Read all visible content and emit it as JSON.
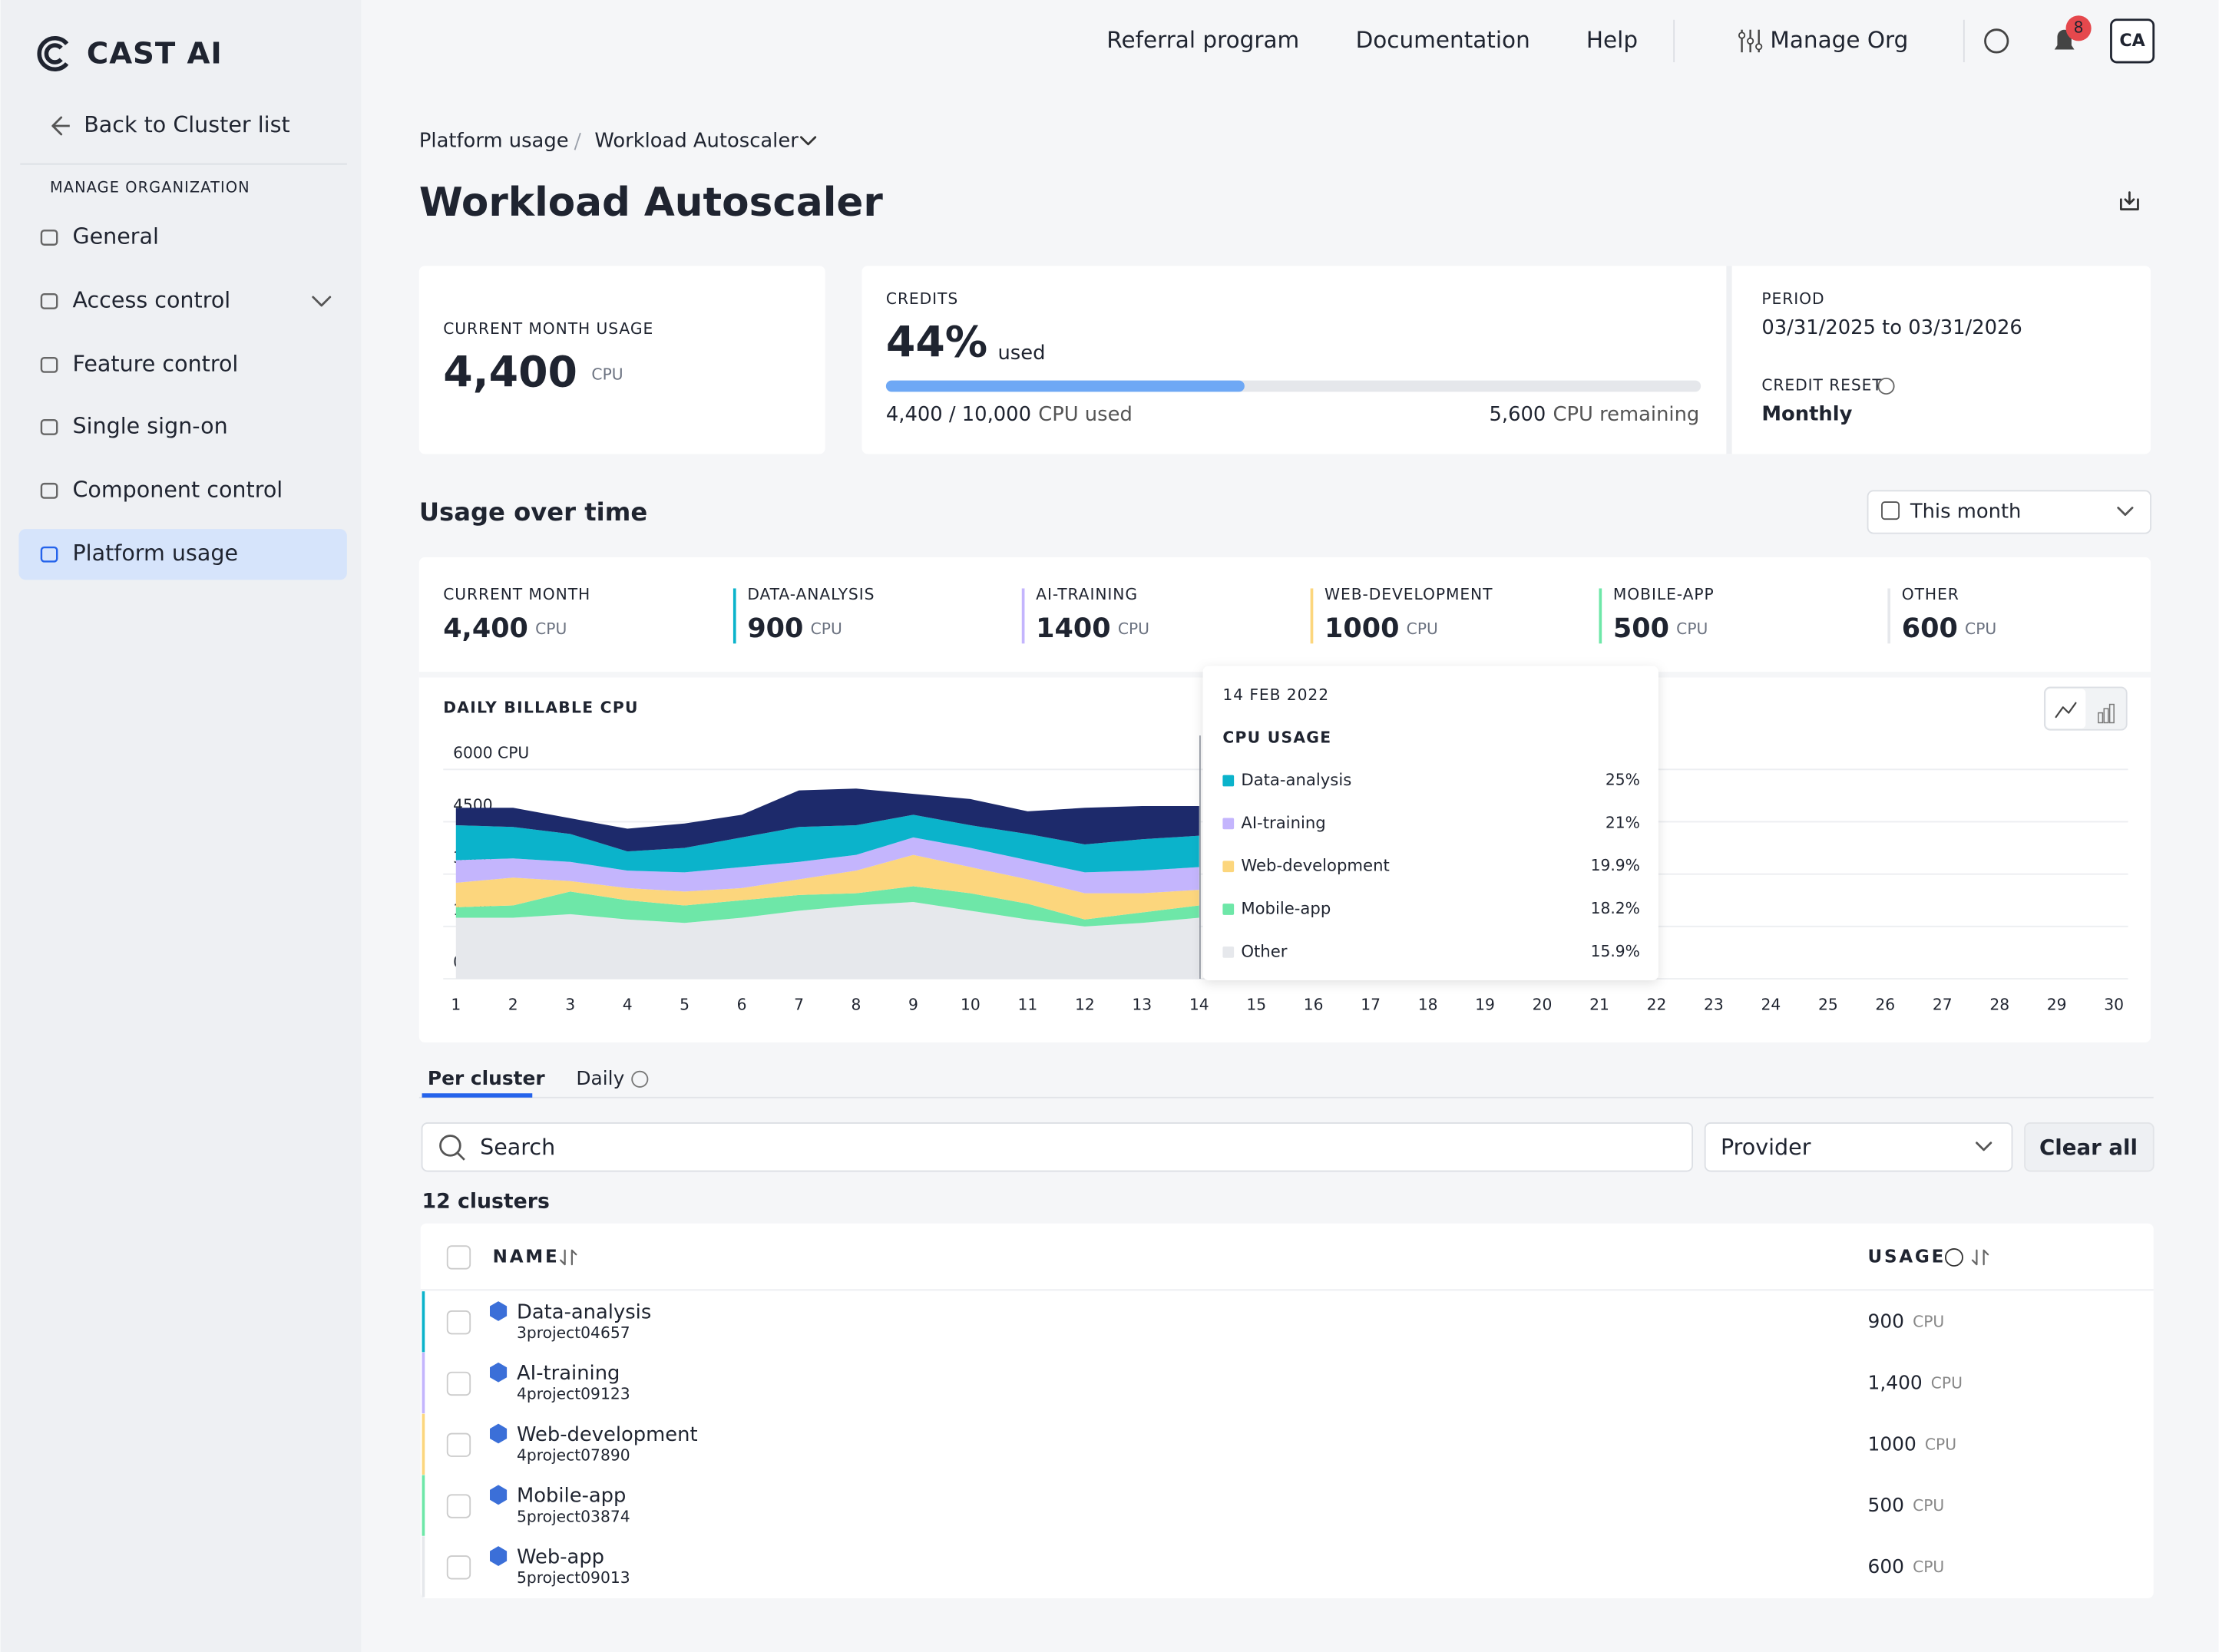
{
  "sidebar": {
    "logo": "CAST AI",
    "back": "Back to Cluster list",
    "section": "MANAGE ORGANIZATION",
    "items": [
      "General",
      "Access control",
      "Feature control",
      "Single sign-on",
      "Component control",
      "Platform usage"
    ]
  },
  "topnav": {
    "links": [
      "Referral program",
      "Documentation",
      "Help",
      "Manage Org"
    ],
    "notifications": "8",
    "avatar": "CA"
  },
  "breadcrumb": [
    "Platform usage",
    "Workload Autoscaler"
  ],
  "title": "Workload Autoscaler",
  "usage_card": {
    "label": "CURRENT MONTH USAGE",
    "value": "4,400",
    "unit": "CPU"
  },
  "credits_card": {
    "label": "CREDITS",
    "used_percent": 44,
    "used_percent_label": "44%",
    "used_word": "used",
    "used_text": "4,400 / 10,000",
    "used_unit": "CPU used",
    "remaining": "5,600",
    "remaining_unit": "CPU remaining"
  },
  "period_card": {
    "label": "PERIOD",
    "value": "03/31/2025 to 03/31/2026",
    "reset_label": "CREDIT RESET",
    "reset": "Monthly"
  },
  "section_title": "Usage over time",
  "range_select": "This month",
  "summary": [
    {
      "label": "CURRENT MONTH",
      "value": "4,400",
      "unit": "CPU"
    },
    {
      "label": "DATA-ANALYSIS",
      "value": "900",
      "unit": "CPU",
      "color": "#0bb3cb"
    },
    {
      "label": "AI-TRAINING",
      "value": "1400",
      "unit": "CPU",
      "color": "#c4b5fd"
    },
    {
      "label": "WEB-DEVELOPMENT",
      "value": "1000",
      "unit": "CPU",
      "color": "#fcd67d"
    },
    {
      "label": "MOBILE-APP",
      "value": "500",
      "unit": "CPU",
      "color": "#6ee7a8"
    },
    {
      "label": "OTHER",
      "value": "600",
      "unit": "CPU"
    }
  ],
  "chart_data": {
    "type": "area",
    "stacked": true,
    "title": "DAILY BILLABLE CPU",
    "x": [
      1,
      2,
      3,
      4,
      5,
      6,
      7,
      8,
      9,
      10,
      11,
      12,
      13,
      14,
      15,
      16,
      17,
      18,
      19,
      20,
      21,
      22,
      23,
      24,
      25,
      26,
      27,
      28,
      29,
      30
    ],
    "xlim": [
      1,
      30
    ],
    "xticks": [
      1,
      2,
      3,
      4,
      5,
      6,
      7,
      8,
      9,
      10,
      11,
      12,
      13,
      14,
      15,
      16,
      17,
      18,
      19,
      20,
      21,
      22,
      23,
      24,
      25,
      26,
      27,
      28,
      29,
      30
    ],
    "ylim": [
      0,
      6000
    ],
    "yticks": [
      0,
      1500,
      3000,
      4500,
      {
        "value": 6000,
        "label": "6000 CPU"
      }
    ],
    "grid": true,
    "series": [
      {
        "name": "Other",
        "color": "#e6e8ec",
        "values": [
          1750,
          1750,
          1850,
          1700,
          1600,
          1750,
          1950,
          2100,
          2200,
          1950,
          1700,
          1500,
          1600,
          1750,
          null,
          null,
          null,
          null,
          null,
          null,
          null,
          null,
          null,
          null,
          null,
          null,
          null,
          null,
          null,
          null
        ]
      },
      {
        "name": "Mobile-app",
        "color": "#6ee7a8",
        "values": [
          300,
          350,
          650,
          550,
          500,
          500,
          450,
          350,
          450,
          500,
          450,
          200,
          300,
          350,
          null,
          null,
          null,
          null,
          null,
          null,
          null,
          null,
          null,
          null,
          null,
          null,
          null,
          null,
          null,
          null
        ]
      },
      {
        "name": "Web-development",
        "color": "#fcd67d",
        "values": [
          700,
          800,
          300,
          350,
          400,
          350,
          450,
          650,
          900,
          750,
          700,
          750,
          550,
          450,
          null,
          null,
          null,
          null,
          null,
          null,
          null,
          null,
          null,
          null,
          null,
          null,
          null,
          null,
          null,
          null
        ]
      },
      {
        "name": "AI-training",
        "color": "#c4b5fd",
        "values": [
          650,
          550,
          550,
          500,
          550,
          600,
          500,
          450,
          500,
          550,
          550,
          600,
          650,
          650,
          null,
          null,
          null,
          null,
          null,
          null,
          null,
          null,
          null,
          null,
          null,
          null,
          null,
          null,
          null,
          null
        ]
      },
      {
        "name": "Data-analysis",
        "color": "#0bb3cb",
        "values": [
          1000,
          900,
          800,
          550,
          700,
          850,
          1000,
          850,
          650,
          650,
          750,
          800,
          900,
          900,
          null,
          null,
          null,
          null,
          null,
          null,
          null,
          null,
          null,
          null,
          null,
          null,
          null,
          null,
          null,
          null
        ]
      },
      {
        "color": "#1d2a6b",
        "values": [
          500,
          550,
          450,
          650,
          700,
          650,
          1050,
          1050,
          600,
          750,
          650,
          1050,
          950,
          850,
          null,
          null,
          null,
          null,
          null,
          null,
          null,
          null,
          null,
          null,
          null,
          null,
          null,
          null,
          null,
          null
        ]
      }
    ],
    "tooltip": {
      "date": "14 FEB 2022",
      "heading": "CPU USAGE",
      "items": [
        {
          "name": "Data-analysis",
          "color": "#0bb3cb",
          "value_label": "25%"
        },
        {
          "name": "AI-training",
          "color": "#c4b5fd",
          "value_label": "21%"
        },
        {
          "name": "Web-development",
          "color": "#fcd67d",
          "value_label": "19.9%"
        },
        {
          "name": "Mobile-app",
          "color": "#6ee7a8",
          "value_label": "18.2%"
        },
        {
          "name": "Other",
          "color": "#e6e8ec",
          "value_label": "15.9%"
        }
      ]
    }
  },
  "tabs": [
    "Per cluster",
    "Daily"
  ],
  "search_placeholder": "Search",
  "provider": "Provider",
  "clear_all": "Clear all",
  "cluster_count": "12 clusters",
  "table": {
    "headers": [
      "NAME",
      "USAGE"
    ],
    "rows": [
      {
        "name": "Data-analysis",
        "project": "3project04657",
        "usage": "900",
        "unit": "CPU",
        "color": "#0bb3cb"
      },
      {
        "name": "AI-training",
        "project": "4project09123",
        "usage": "1,400",
        "unit": "CPU",
        "color": "#c4b5fd"
      },
      {
        "name": "Web-development",
        "project": "4project07890",
        "usage": "1000",
        "unit": "CPU",
        "color": "#fcd67d"
      },
      {
        "name": "Mobile-app",
        "project": "5project03874",
        "usage": "500",
        "unit": "CPU",
        "color": "#6ee7a8"
      },
      {
        "name": "Web-app",
        "project": "5project09013",
        "usage": "600",
        "unit": "CPU",
        "color": "#e6e8ec"
      }
    ]
  }
}
